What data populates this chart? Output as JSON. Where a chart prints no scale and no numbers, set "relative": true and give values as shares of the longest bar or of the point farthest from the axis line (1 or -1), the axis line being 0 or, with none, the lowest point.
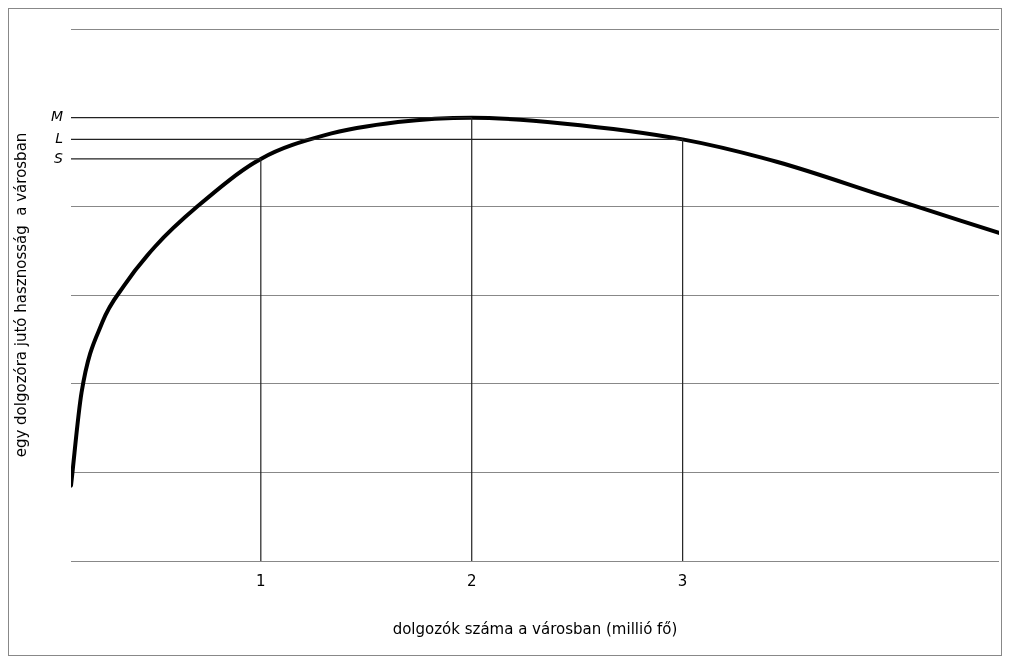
{
  "chart_data": {
    "type": "line",
    "relative": true,
    "xlabel": "dolgozók száma a városban (millió fő)",
    "ylabel": "egy dolgozóra jutó hasznosság  a városban",
    "x": [
      0.1,
      0.15,
      0.25,
      0.35,
      0.5,
      0.7,
      1.0,
      1.3,
      1.65,
      2.0,
      2.43,
      3.0,
      3.45,
      3.95,
      4.5
    ],
    "series": [
      {
        "color": "#000000",
        "values": [
          0.17,
          0.38,
          0.54,
          0.62,
          0.71,
          0.8,
          0.907,
          0.96,
          0.99,
          1.0,
          0.987,
          0.951,
          0.9,
          0.824,
          0.74
        ]
      }
    ],
    "xlim": [
      0.1,
      4.5
    ],
    "xticks": [
      1,
      2,
      3
    ],
    "grid": "y",
    "marker": "none",
    "line_style": "solid",
    "legend": false,
    "ref_lines": [
      {
        "axis": "y",
        "value": 1.0,
        "label": "M"
      },
      {
        "axis": "y",
        "value": 0.951,
        "label": "L"
      },
      {
        "axis": "y",
        "value": 0.907,
        "label": "S"
      },
      {
        "axis": "x",
        "value": 1
      },
      {
        "axis": "x",
        "value": 2
      },
      {
        "axis": "x",
        "value": 3
      }
    ]
  }
}
